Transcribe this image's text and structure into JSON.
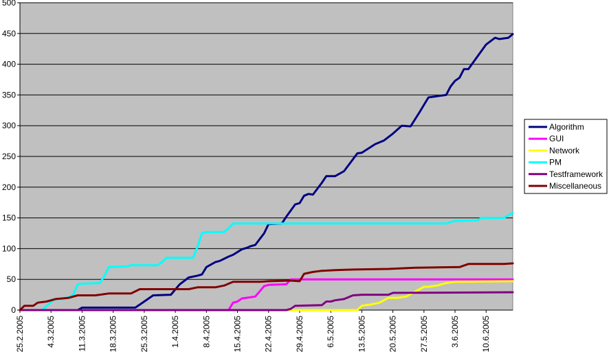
{
  "chart_data": {
    "type": "line",
    "title": "",
    "xlabel": "",
    "ylabel": "",
    "ylim": [
      0,
      500
    ],
    "yticks": [
      0,
      50,
      100,
      150,
      200,
      250,
      300,
      350,
      400,
      450,
      500
    ],
    "xlim": [
      "2005-02-25",
      "2005-06-16"
    ],
    "xtick_labels": [
      "25.2.2005",
      "4.3.2005",
      "11.3.2005",
      "18.3.2005",
      "25.3.2005",
      "1.4.2005",
      "8.4.2005",
      "15.4.2005",
      "22.4.2005",
      "29.4.2005",
      "6.5.2005",
      "13.5.2005",
      "20.5.2005",
      "27.5.2005",
      "3.6.2005",
      "10.6.2005"
    ],
    "xtick_dates": [
      "2005-02-25",
      "2005-03-04",
      "2005-03-11",
      "2005-03-18",
      "2005-03-25",
      "2005-04-01",
      "2005-04-08",
      "2005-04-15",
      "2005-04-22",
      "2005-04-29",
      "2005-05-06",
      "2005-05-13",
      "2005-05-20",
      "2005-05-27",
      "2005-06-03",
      "2005-06-10"
    ],
    "grid": true,
    "legend_position": "right",
    "plot_background": "#c0c0c0",
    "series": [
      {
        "name": "Algorithm",
        "color": "#000080",
        "points": [
          [
            "2005-02-25",
            0
          ],
          [
            "2005-03-06",
            0
          ],
          [
            "2005-03-10",
            0
          ],
          [
            "2005-03-11",
            4
          ],
          [
            "2005-03-20",
            4
          ],
          [
            "2005-03-23",
            4
          ],
          [
            "2005-03-25",
            14
          ],
          [
            "2005-03-27",
            24
          ],
          [
            "2005-03-31",
            25
          ],
          [
            "2005-04-02",
            42
          ],
          [
            "2005-04-04",
            53
          ],
          [
            "2005-04-06",
            56
          ],
          [
            "2005-04-07",
            58
          ],
          [
            "2005-04-08",
            70
          ],
          [
            "2005-04-10",
            78
          ],
          [
            "2005-04-11",
            80
          ],
          [
            "2005-04-13",
            87
          ],
          [
            "2005-04-14",
            90
          ],
          [
            "2005-04-16",
            99
          ],
          [
            "2005-04-17",
            101
          ],
          [
            "2005-04-18",
            104
          ],
          [
            "2005-04-19",
            106
          ],
          [
            "2005-04-21",
            125
          ],
          [
            "2005-04-22",
            140
          ],
          [
            "2005-04-25",
            141
          ],
          [
            "2005-04-26",
            152
          ],
          [
            "2005-04-28",
            172
          ],
          [
            "2005-04-29",
            174
          ],
          [
            "2005-04-30",
            186
          ],
          [
            "2005-05-01",
            189
          ],
          [
            "2005-05-02",
            188
          ],
          [
            "2005-05-04",
            207
          ],
          [
            "2005-05-05",
            218
          ],
          [
            "2005-05-07",
            218
          ],
          [
            "2005-05-09",
            226
          ],
          [
            "2005-05-12",
            255
          ],
          [
            "2005-05-13",
            256
          ],
          [
            "2005-05-16",
            270
          ],
          [
            "2005-05-18",
            276
          ],
          [
            "2005-05-20",
            287
          ],
          [
            "2005-05-22",
            300
          ],
          [
            "2005-05-24",
            299
          ],
          [
            "2005-05-26",
            322
          ],
          [
            "2005-05-28",
            346
          ],
          [
            "2005-05-30",
            348
          ],
          [
            "2005-06-01",
            350
          ],
          [
            "2005-06-02",
            364
          ],
          [
            "2005-06-03",
            373
          ],
          [
            "2005-06-04",
            378
          ],
          [
            "2005-06-05",
            392
          ],
          [
            "2005-06-06",
            392
          ],
          [
            "2005-06-08",
            412
          ],
          [
            "2005-06-10",
            432
          ],
          [
            "2005-06-12",
            443
          ],
          [
            "2005-06-13",
            441
          ],
          [
            "2005-06-15",
            443
          ],
          [
            "2005-06-16",
            449
          ]
        ]
      },
      {
        "name": "GUI",
        "color": "#ff00ff",
        "points": [
          [
            "2005-02-25",
            0
          ],
          [
            "2005-04-13",
            0
          ],
          [
            "2005-04-14",
            12
          ],
          [
            "2005-04-15",
            14
          ],
          [
            "2005-04-16",
            19
          ],
          [
            "2005-04-17",
            20
          ],
          [
            "2005-04-19",
            22
          ],
          [
            "2005-04-21",
            39
          ],
          [
            "2005-04-22",
            41
          ],
          [
            "2005-04-26",
            42
          ],
          [
            "2005-04-27",
            50
          ],
          [
            "2005-06-16",
            50
          ]
        ]
      },
      {
        "name": "Network",
        "color": "#ffff00",
        "points": [
          [
            "2005-02-25",
            0
          ],
          [
            "2005-05-12",
            0
          ],
          [
            "2005-05-13",
            7
          ],
          [
            "2005-05-15",
            9
          ],
          [
            "2005-05-17",
            12
          ],
          [
            "2005-05-19",
            20
          ],
          [
            "2005-05-21",
            20
          ],
          [
            "2005-05-23",
            22
          ],
          [
            "2005-05-25",
            30
          ],
          [
            "2005-05-27",
            38
          ],
          [
            "2005-05-28",
            38
          ],
          [
            "2005-05-30",
            40
          ],
          [
            "2005-06-01",
            44
          ],
          [
            "2005-06-03",
            46
          ],
          [
            "2005-06-16",
            47
          ]
        ]
      },
      {
        "name": "PM",
        "color": "#00ffff",
        "points": [
          [
            "2005-02-25",
            0
          ],
          [
            "2005-03-02",
            0
          ],
          [
            "2005-03-04",
            13
          ],
          [
            "2005-03-05",
            18
          ],
          [
            "2005-03-07",
            18
          ],
          [
            "2005-03-09",
            25
          ],
          [
            "2005-03-10",
            42
          ],
          [
            "2005-03-11",
            43
          ],
          [
            "2005-03-15",
            44
          ],
          [
            "2005-03-16",
            55
          ],
          [
            "2005-03-17",
            70
          ],
          [
            "2005-03-21",
            71
          ],
          [
            "2005-03-22",
            73
          ],
          [
            "2005-03-28",
            73
          ],
          [
            "2005-03-29",
            78
          ],
          [
            "2005-03-30",
            85
          ],
          [
            "2005-04-05",
            85
          ],
          [
            "2005-04-06",
            103
          ],
          [
            "2005-04-07",
            125
          ],
          [
            "2005-04-08",
            127
          ],
          [
            "2005-04-12",
            127
          ],
          [
            "2005-04-13",
            133
          ],
          [
            "2005-04-14",
            141
          ],
          [
            "2005-06-01",
            141
          ],
          [
            "2005-06-03",
            145
          ],
          [
            "2005-06-08",
            146
          ],
          [
            "2005-06-09",
            150
          ],
          [
            "2005-06-14",
            150
          ],
          [
            "2005-06-16",
            158
          ]
        ]
      },
      {
        "name": "Testframework",
        "color": "#800080",
        "points": [
          [
            "2005-02-25",
            0
          ],
          [
            "2005-04-26",
            0
          ],
          [
            "2005-04-27",
            2
          ],
          [
            "2005-04-28",
            7
          ],
          [
            "2005-05-04",
            8
          ],
          [
            "2005-05-05",
            14
          ],
          [
            "2005-05-06",
            14
          ],
          [
            "2005-05-07",
            16
          ],
          [
            "2005-05-09",
            18
          ],
          [
            "2005-05-11",
            24
          ],
          [
            "2005-05-13",
            25
          ],
          [
            "2005-05-19",
            25
          ],
          [
            "2005-05-20",
            28
          ],
          [
            "2005-06-16",
            29
          ]
        ]
      },
      {
        "name": "Miscellaneous",
        "color": "#800000",
        "points": [
          [
            "2005-02-25",
            0
          ],
          [
            "2005-02-26",
            7
          ],
          [
            "2005-02-28",
            7
          ],
          [
            "2005-03-01",
            12
          ],
          [
            "2005-03-03",
            14
          ],
          [
            "2005-03-05",
            18
          ],
          [
            "2005-03-08",
            20
          ],
          [
            "2005-03-10",
            24
          ],
          [
            "2005-03-14",
            24
          ],
          [
            "2005-03-17",
            27
          ],
          [
            "2005-03-22",
            27
          ],
          [
            "2005-03-24",
            34
          ],
          [
            "2005-04-04",
            34
          ],
          [
            "2005-04-06",
            37
          ],
          [
            "2005-04-10",
            37
          ],
          [
            "2005-04-12",
            40
          ],
          [
            "2005-04-14",
            46
          ],
          [
            "2005-04-20",
            46
          ],
          [
            "2005-04-22",
            47
          ],
          [
            "2005-04-27",
            48
          ],
          [
            "2005-04-29",
            47
          ],
          [
            "2005-04-30",
            59
          ],
          [
            "2005-05-02",
            62
          ],
          [
            "2005-05-04",
            64
          ],
          [
            "2005-05-07",
            65
          ],
          [
            "2005-05-11",
            66
          ],
          [
            "2005-05-19",
            67
          ],
          [
            "2005-05-25",
            69
          ],
          [
            "2005-06-04",
            70
          ],
          [
            "2005-06-06",
            75
          ],
          [
            "2005-06-14",
            75
          ],
          [
            "2005-06-16",
            76
          ]
        ]
      }
    ]
  }
}
